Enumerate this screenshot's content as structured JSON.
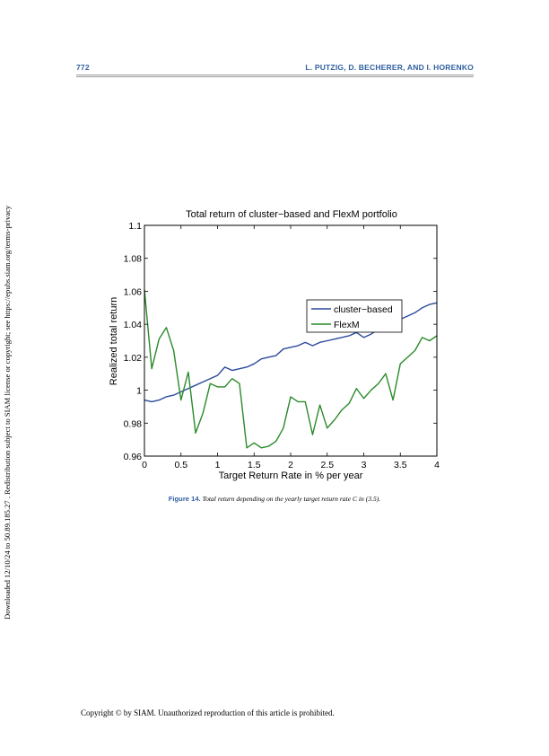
{
  "header": {
    "page_number": "772",
    "authors": "L. PUTZIG, D. BECHERER, AND I. HORENKO"
  },
  "side_note": "Downloaded 12/10/24 to 50.89.185.27 . Redistribution subject to SIAM license or copyright; see https://epubs.siam.org/terms-privacy",
  "chart_data": {
    "type": "line",
    "title": "Total return of cluster−based and FlexM portfolio",
    "xlabel": "Target Return Rate in % per year",
    "ylabel": "Realized total return",
    "xlim": [
      0,
      4
    ],
    "ylim": [
      0.96,
      1.1
    ],
    "xticks": [
      "0",
      "0.5",
      "1",
      "1.5",
      "2",
      "2.5",
      "3",
      "3.5",
      "4"
    ],
    "yticks": [
      "0.96",
      "0.98",
      "1",
      "1.02",
      "1.04",
      "1.06",
      "1.08",
      "1.1"
    ],
    "grid": false,
    "legend_position": "right, mid-height",
    "x": [
      0,
      0.1,
      0.2,
      0.3,
      0.4,
      0.5,
      0.6,
      0.7,
      0.8,
      0.9,
      1.0,
      1.1,
      1.2,
      1.3,
      1.4,
      1.5,
      1.6,
      1.7,
      1.8,
      1.9,
      2.0,
      2.1,
      2.2,
      2.3,
      2.4,
      2.5,
      2.6,
      2.7,
      2.8,
      2.9,
      3.0,
      3.1,
      3.2,
      3.3,
      3.4,
      3.5,
      3.6,
      3.7,
      3.8,
      3.9,
      4.0
    ],
    "series": [
      {
        "name": "cluster−based",
        "color": "#2b4a9b",
        "values": [
          0.994,
          0.993,
          0.994,
          0.996,
          0.997,
          0.999,
          1.001,
          1.003,
          1.005,
          1.007,
          1.009,
          1.014,
          1.012,
          1.013,
          1.014,
          1.016,
          1.019,
          1.02,
          1.021,
          1.025,
          1.026,
          1.027,
          1.029,
          1.027,
          1.029,
          1.03,
          1.031,
          1.032,
          1.033,
          1.035,
          1.032,
          1.034,
          1.037,
          1.039,
          1.041,
          1.043,
          1.045,
          1.047,
          1.05,
          1.052,
          1.053
        ]
      },
      {
        "name": "FlexM",
        "color": "#2a8a2a",
        "values": [
          1.061,
          1.013,
          1.031,
          1.038,
          1.024,
          0.994,
          1.011,
          0.974,
          0.986,
          1.004,
          1.002,
          1.002,
          1.007,
          1.004,
          0.965,
          0.968,
          0.965,
          0.966,
          0.969,
          0.977,
          0.996,
          0.993,
          0.993,
          0.973,
          0.991,
          0.977,
          0.982,
          0.988,
          0.992,
          1.001,
          0.995,
          1.0,
          1.004,
          1.01,
          0.994,
          1.016,
          1.02,
          1.024,
          1.032,
          1.03,
          1.033
        ]
      }
    ]
  },
  "caption": {
    "label": "Figure 14.",
    "text": "Total return depending on the yearly target return rate C in (3.5)."
  },
  "footer": "Copyright © by SIAM. Unauthorized reproduction of this article is prohibited."
}
